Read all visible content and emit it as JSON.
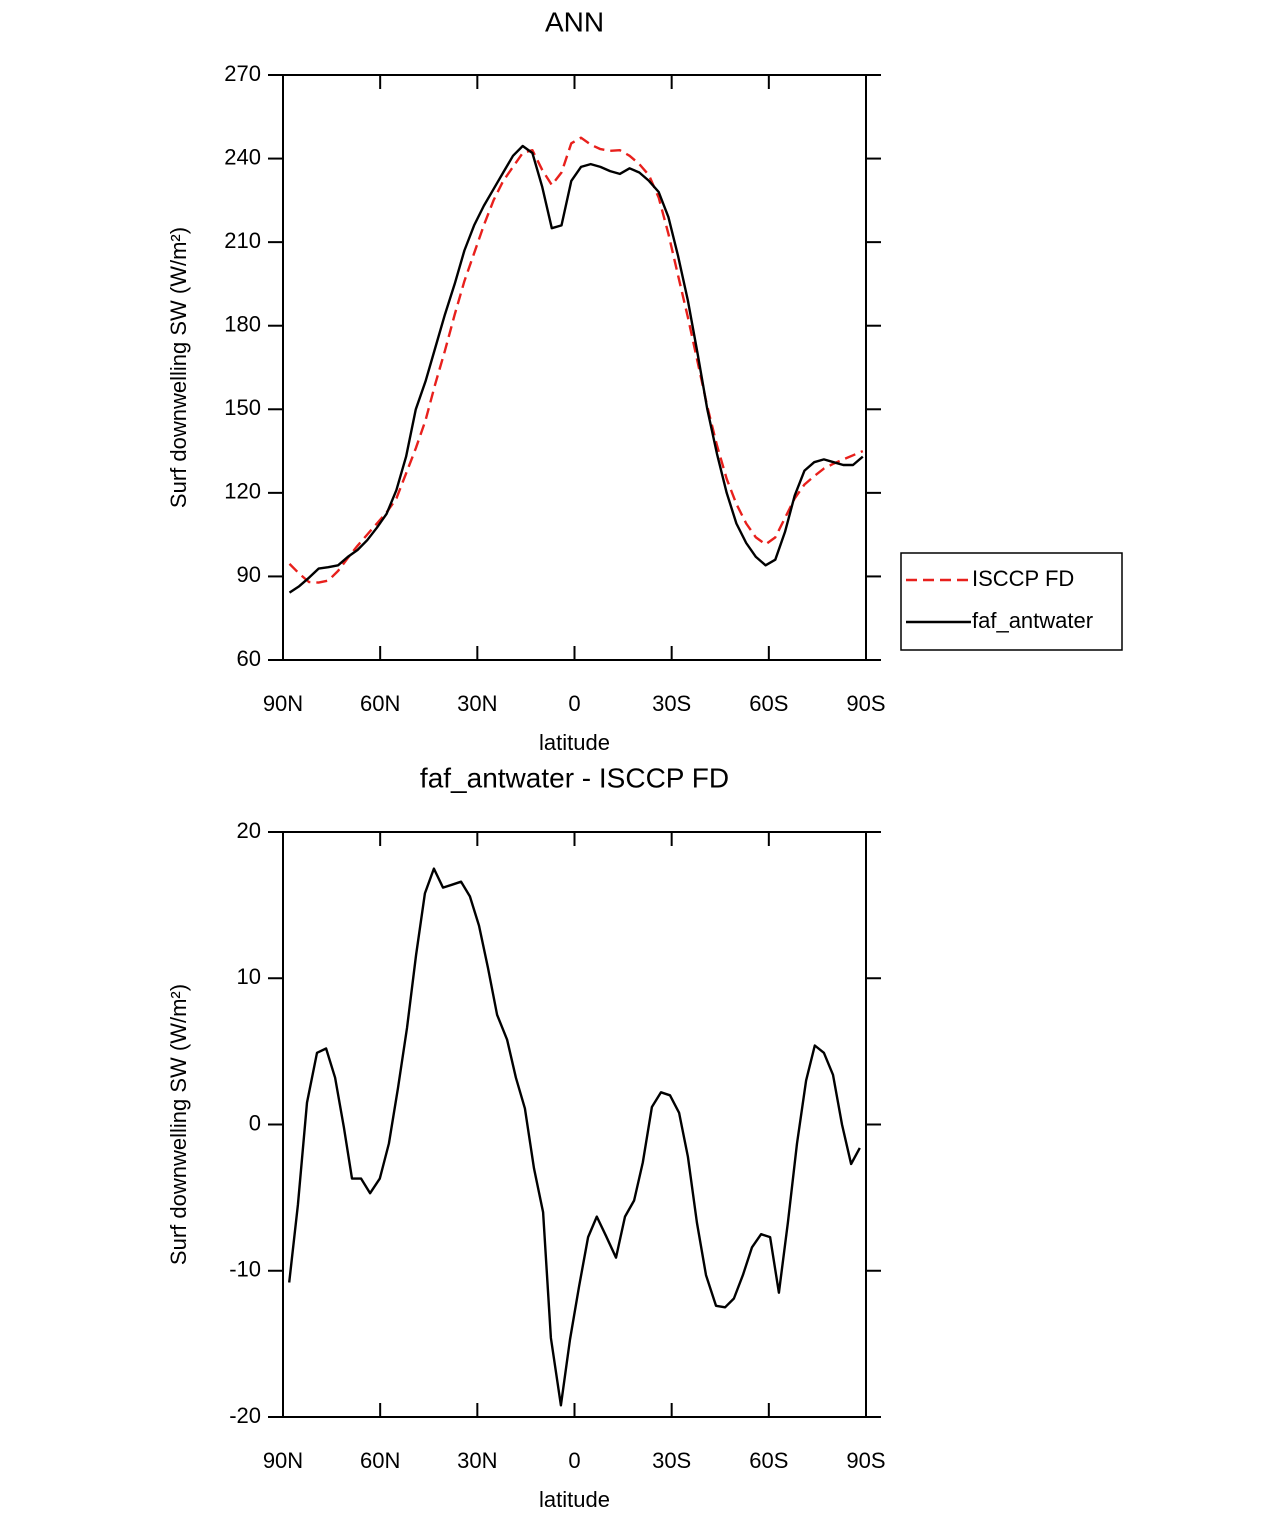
{
  "chart_data": [
    {
      "type": "line",
      "title": "ANN",
      "xlabel": "latitude",
      "ylabel": "Surf downwelling SW (W/m²)",
      "x": [
        88,
        85,
        82,
        79,
        76,
        73,
        70,
        67,
        64,
        61,
        58,
        55,
        52,
        49,
        46,
        43,
        40,
        37,
        34,
        31,
        28,
        25,
        22,
        19,
        16,
        13,
        10,
        7,
        4,
        1,
        -2,
        -5,
        -8,
        -11,
        -14,
        -17,
        -20,
        -23,
        -26,
        -29,
        -32,
        -35,
        -38,
        -41,
        -44,
        -47,
        -50,
        -53,
        -56,
        -59,
        -62,
        -65,
        -68,
        -71,
        -74,
        -77,
        -80,
        -83,
        -86,
        -89
      ],
      "series": [
        {
          "name": "ISCCP FD",
          "color": "#e8201c",
          "dash": true,
          "values": [
            94.5,
            91,
            88,
            87.8,
            88.5,
            92,
            96.6,
            101,
            105,
            109,
            113,
            118,
            127,
            136,
            146,
            159,
            171,
            184,
            196,
            206,
            216,
            225,
            232,
            237,
            242,
            243,
            236,
            230.5,
            235,
            245.5,
            247.5,
            245,
            243.4,
            242.8,
            243,
            241,
            238,
            234,
            226,
            213,
            198,
            183,
            167,
            151,
            137,
            125,
            116,
            109,
            104,
            101.5,
            104,
            111,
            118,
            123,
            126,
            128.7,
            130.5,
            132,
            133.5,
            135
          ]
        },
        {
          "name": "faf_antwater",
          "color": "#000000",
          "dash": false,
          "values": [
            84.2,
            86.5,
            89.5,
            92.8,
            93.3,
            94,
            97,
            99.5,
            103,
            107.5,
            112.5,
            121,
            133,
            150,
            160,
            172,
            184,
            195,
            207,
            216,
            223,
            229,
            235,
            241,
            244.5,
            242,
            230,
            215,
            216,
            232,
            237,
            238,
            237,
            235.5,
            234.5,
            236.5,
            235,
            232,
            228,
            219,
            205,
            189,
            170,
            150,
            134,
            120,
            109,
            102,
            97,
            94,
            96,
            106,
            119,
            128,
            131,
            132,
            131,
            130,
            130,
            133
          ]
        }
      ],
      "xlim": [
        90,
        -90
      ],
      "xticks": [
        {
          "value": 90,
          "label": "90N"
        },
        {
          "value": 60,
          "label": "60N"
        },
        {
          "value": 30,
          "label": "30N"
        },
        0,
        {
          "value": -30,
          "label": "30S"
        },
        {
          "value": -60,
          "label": "60S"
        },
        {
          "value": -90,
          "label": "90S"
        }
      ],
      "ylim": [
        60,
        270
      ],
      "yticks": [
        60,
        90,
        120,
        150,
        180,
        210,
        240,
        270
      ],
      "legend": "right"
    },
    {
      "type": "line",
      "title": "faf_antwater - ISCCP FD",
      "xlabel": "latitude",
      "ylabel": "Surf downwelling SW (W/m²)",
      "x": [
        88.1,
        85.4,
        82.6,
        79.5,
        76.7,
        73.9,
        71.2,
        68.7,
        65.9,
        63.1,
        60.1,
        57.3,
        54.5,
        51.7,
        48.9,
        46.2,
        43.4,
        40.6,
        37.8,
        35,
        32.3,
        29.5,
        26.7,
        23.9,
        20.8,
        18.1,
        15.3,
        12.5,
        9.7,
        7.3,
        4.2,
        1.4,
        -1.4,
        -4.2,
        -6.9,
        -9.7,
        -12.8,
        -15.6,
        -18.4,
        -21.1,
        -23.9,
        -26.7,
        -29.5,
        -32.3,
        -35,
        -37.8,
        -40.6,
        -43.7,
        -46.5,
        -49.2,
        -52,
        -54.8,
        -57.6,
        -60.4,
        -63.1,
        -65.9,
        -68.7,
        -71.5,
        -74.2,
        -77,
        -79.8,
        -82.6,
        -85.4,
        -88.1
      ],
      "values": [
        -10.8,
        -5.5,
        1.5,
        4.9,
        5.2,
        3.2,
        -0.2,
        -3.7,
        -3.7,
        -4.7,
        -3.7,
        -1.3,
        2.5,
        6.6,
        11.6,
        15.8,
        17.5,
        16.2,
        16.4,
        16.6,
        15.6,
        13.6,
        10.7,
        7.5,
        5.8,
        3.2,
        1.1,
        -3,
        -6,
        -14.6,
        -19.2,
        -14.7,
        -11.1,
        -7.7,
        -6.3,
        -7.6,
        -9.1,
        -6.3,
        -5.2,
        -2.6,
        1.2,
        2.2,
        2,
        0.8,
        -2.2,
        -6.7,
        -10.3,
        -12.4,
        -12.5,
        -11.9,
        -10.3,
        -8.4,
        -7.5,
        -7.7,
        -11.5,
        -6.7,
        -1.3,
        3,
        5.4,
        4.9,
        3.4,
        0,
        -2.7,
        -1.6
      ],
      "color": "#000000",
      "xlim": [
        90,
        -90
      ],
      "xticks": [
        {
          "value": 90,
          "label": "90N"
        },
        {
          "value": 60,
          "label": "60N"
        },
        {
          "value": 30,
          "label": "30N"
        },
        0,
        {
          "value": -30,
          "label": "30S"
        },
        {
          "value": -60,
          "label": "60S"
        },
        {
          "value": -90,
          "label": "90S"
        }
      ],
      "ylim": [
        -20,
        20
      ],
      "yticks": [
        -20,
        -10,
        0,
        10,
        20
      ]
    }
  ]
}
